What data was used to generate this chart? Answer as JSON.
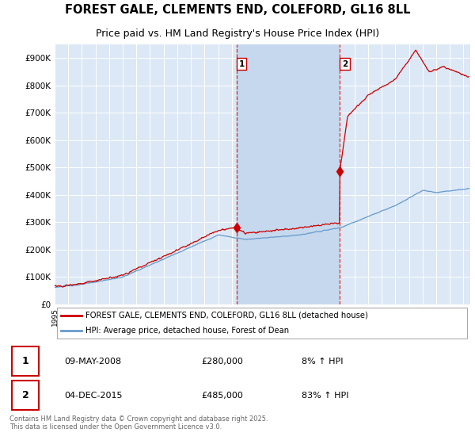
{
  "title": "FOREST GALE, CLEMENTS END, COLEFORD, GL16 8LL",
  "subtitle": "Price paid vs. HM Land Registry's House Price Index (HPI)",
  "ylim": [
    0,
    950000
  ],
  "yticks": [
    0,
    100000,
    200000,
    300000,
    400000,
    500000,
    600000,
    700000,
    800000,
    900000
  ],
  "ytick_labels": [
    "£0",
    "£100K",
    "£200K",
    "£300K",
    "£400K",
    "£500K",
    "£600K",
    "£700K",
    "£800K",
    "£900K"
  ],
  "xlim_start": 1995.0,
  "xlim_end": 2025.5,
  "marker1_x": 2008.36,
  "marker1_y": 280000,
  "marker2_x": 2015.92,
  "marker2_y": 485000,
  "annotation1_date": "09-MAY-2008",
  "annotation1_price": "£280,000",
  "annotation1_hpi": "8% ↑ HPI",
  "annotation2_date": "04-DEC-2015",
  "annotation2_price": "£485,000",
  "annotation2_hpi": "83% ↑ HPI",
  "legend_label1": "FOREST GALE, CLEMENTS END, COLEFORD, GL16 8LL (detached house)",
  "legend_label2": "HPI: Average price, detached house, Forest of Dean",
  "line1_color": "#cc0000",
  "line2_color": "#6699cc",
  "background_color": "#ffffff",
  "plot_bg_color": "#dce8f5",
  "grid_color": "#ffffff",
  "span_color": "#c5d8ee",
  "footnote": "Contains HM Land Registry data © Crown copyright and database right 2025.\nThis data is licensed under the Open Government Licence v3.0.",
  "title_fontsize": 10.5,
  "subtitle_fontsize": 9
}
